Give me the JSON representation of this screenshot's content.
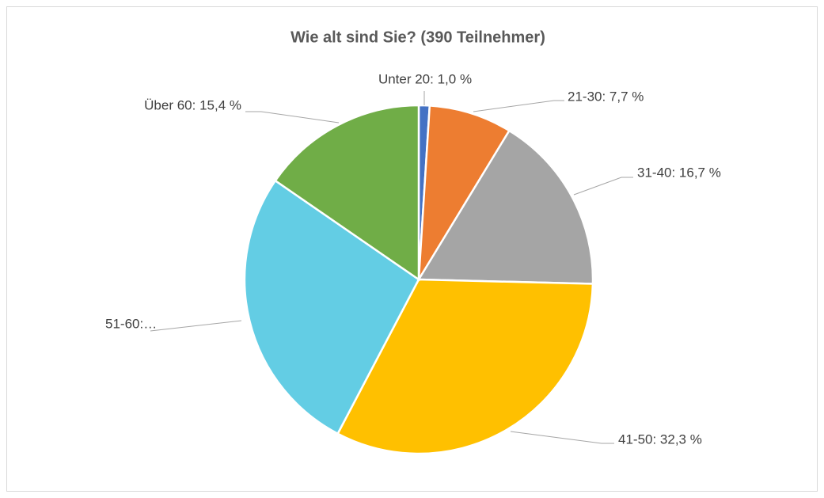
{
  "chart_data": {
    "type": "pie",
    "title": "Wie alt sind Sie? (390 Teilnehmer)",
    "categories": [
      "Unter 20",
      "21-30",
      "31-40",
      "41-50",
      "51-60",
      "Über 60"
    ],
    "values": [
      1.0,
      7.7,
      16.7,
      32.3,
      26.9,
      15.4
    ],
    "value_labels": [
      "Unter 20:  1,0 %",
      "21-30: 7,7 %",
      "31-40: 16,7 %",
      "41-50: 32,3 %",
      "51-60:…",
      "Über 60: 15,4 %"
    ],
    "colors": [
      "#4472c4",
      "#ed7d31",
      "#a5a5a5",
      "#ffc000",
      "#63cde4",
      "#70ad47"
    ]
  }
}
